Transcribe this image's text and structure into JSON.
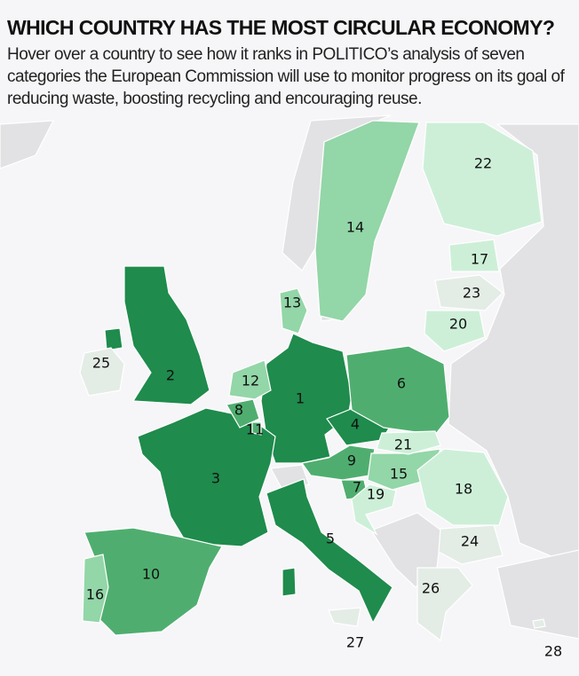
{
  "header": {
    "title": "WHICH COUNTRY HAS THE MOST CIRCULAR ECONOMY?",
    "subtitle": "Hover over a country to see how it ranks in POLITICO’s analysis of seven categories the European Commission will use to monitor progress on its goal of reducing waste, boosting recycling and encouraging reuse."
  },
  "colors": {
    "background": "#f6f6f8",
    "non_eu": "#e2e2e4",
    "tier_1_5": "#1f8b4c",
    "tier_6_11": "#4fae6f",
    "tier_12_16": "#93d6a8",
    "tier_17_22": "#cdefd8",
    "tier_23_28": "#e4ece6"
  },
  "map": {
    "rankings": [
      {
        "id": "germany",
        "rank": "1"
      },
      {
        "id": "uk",
        "rank": "2"
      },
      {
        "id": "france",
        "rank": "3"
      },
      {
        "id": "czechia",
        "rank": "4"
      },
      {
        "id": "italy",
        "rank": "5"
      },
      {
        "id": "poland",
        "rank": "6"
      },
      {
        "id": "slovenia",
        "rank": "7"
      },
      {
        "id": "belgium",
        "rank": "8"
      },
      {
        "id": "austria",
        "rank": "9"
      },
      {
        "id": "spain",
        "rank": "10"
      },
      {
        "id": "luxembourg",
        "rank": "11"
      },
      {
        "id": "netherlands",
        "rank": "12"
      },
      {
        "id": "denmark",
        "rank": "13"
      },
      {
        "id": "sweden",
        "rank": "14"
      },
      {
        "id": "hungary",
        "rank": "15"
      },
      {
        "id": "portugal",
        "rank": "16"
      },
      {
        "id": "estonia",
        "rank": "17"
      },
      {
        "id": "romania",
        "rank": "18"
      },
      {
        "id": "croatia",
        "rank": "19"
      },
      {
        "id": "lithuania",
        "rank": "20"
      },
      {
        "id": "slovakia",
        "rank": "21"
      },
      {
        "id": "finland",
        "rank": "22"
      },
      {
        "id": "latvia",
        "rank": "23"
      },
      {
        "id": "bulgaria",
        "rank": "24"
      },
      {
        "id": "ireland",
        "rank": "25"
      },
      {
        "id": "greece",
        "rank": "26"
      },
      {
        "id": "malta",
        "rank": "27"
      },
      {
        "id": "cyprus",
        "rank": "28"
      }
    ]
  }
}
